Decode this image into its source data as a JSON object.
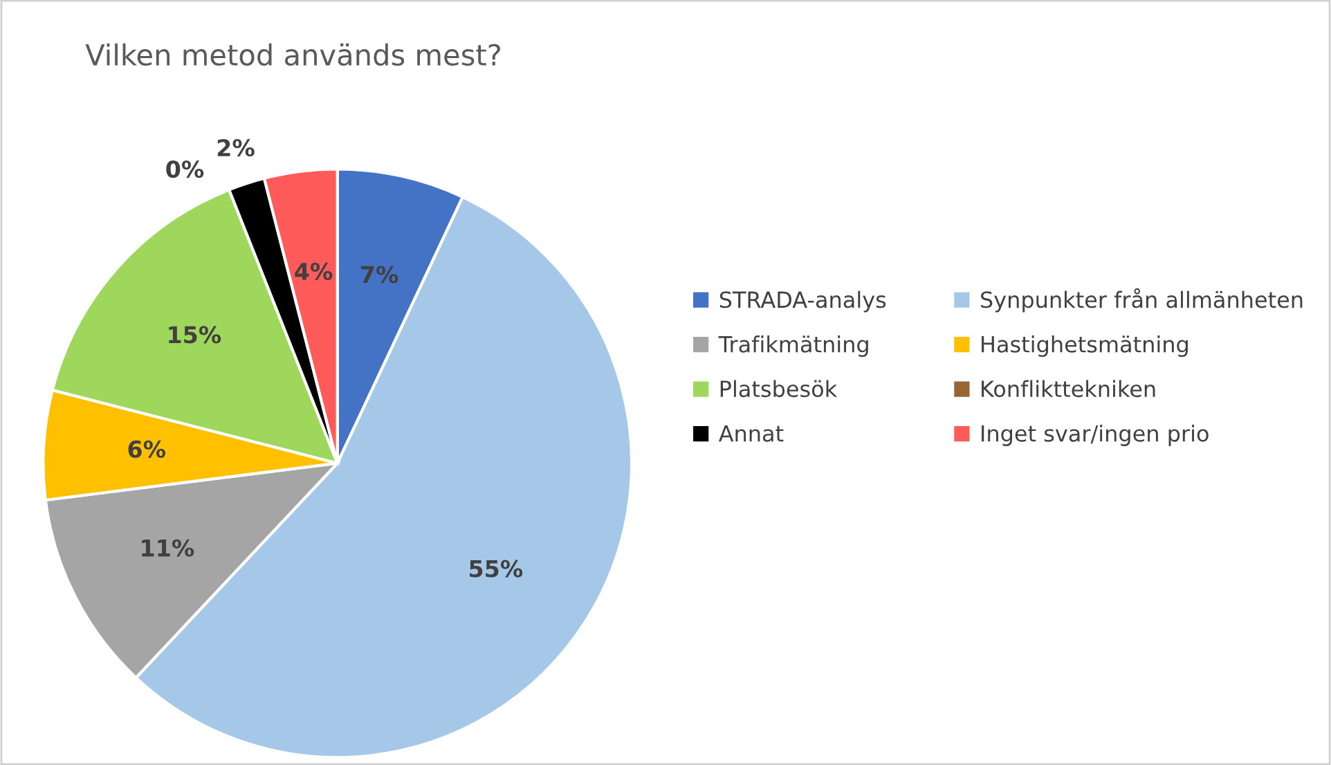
{
  "chart_data": {
    "type": "pie",
    "title": "Vilken metod används mest?",
    "categories": [
      "STRADA-analys",
      "Synpunkter från allmänheten",
      "Trafikmätning",
      "Hastighetsmätning",
      "Platsbesök",
      "Konflikttekniken",
      "Annat",
      "Inget svar/ingen prio"
    ],
    "values": [
      7,
      55,
      11,
      6,
      15,
      0,
      2,
      4
    ],
    "value_labels": [
      "7%",
      "55%",
      "11%",
      "6%",
      "15%",
      "0%",
      "2%",
      "4%"
    ],
    "colors": [
      "#4472c4",
      "#a6c8e8",
      "#a5a5a5",
      "#ffc000",
      "#9fd65c",
      "#996633",
      "#000000",
      "#ff5b5b"
    ],
    "legend": "right"
  }
}
